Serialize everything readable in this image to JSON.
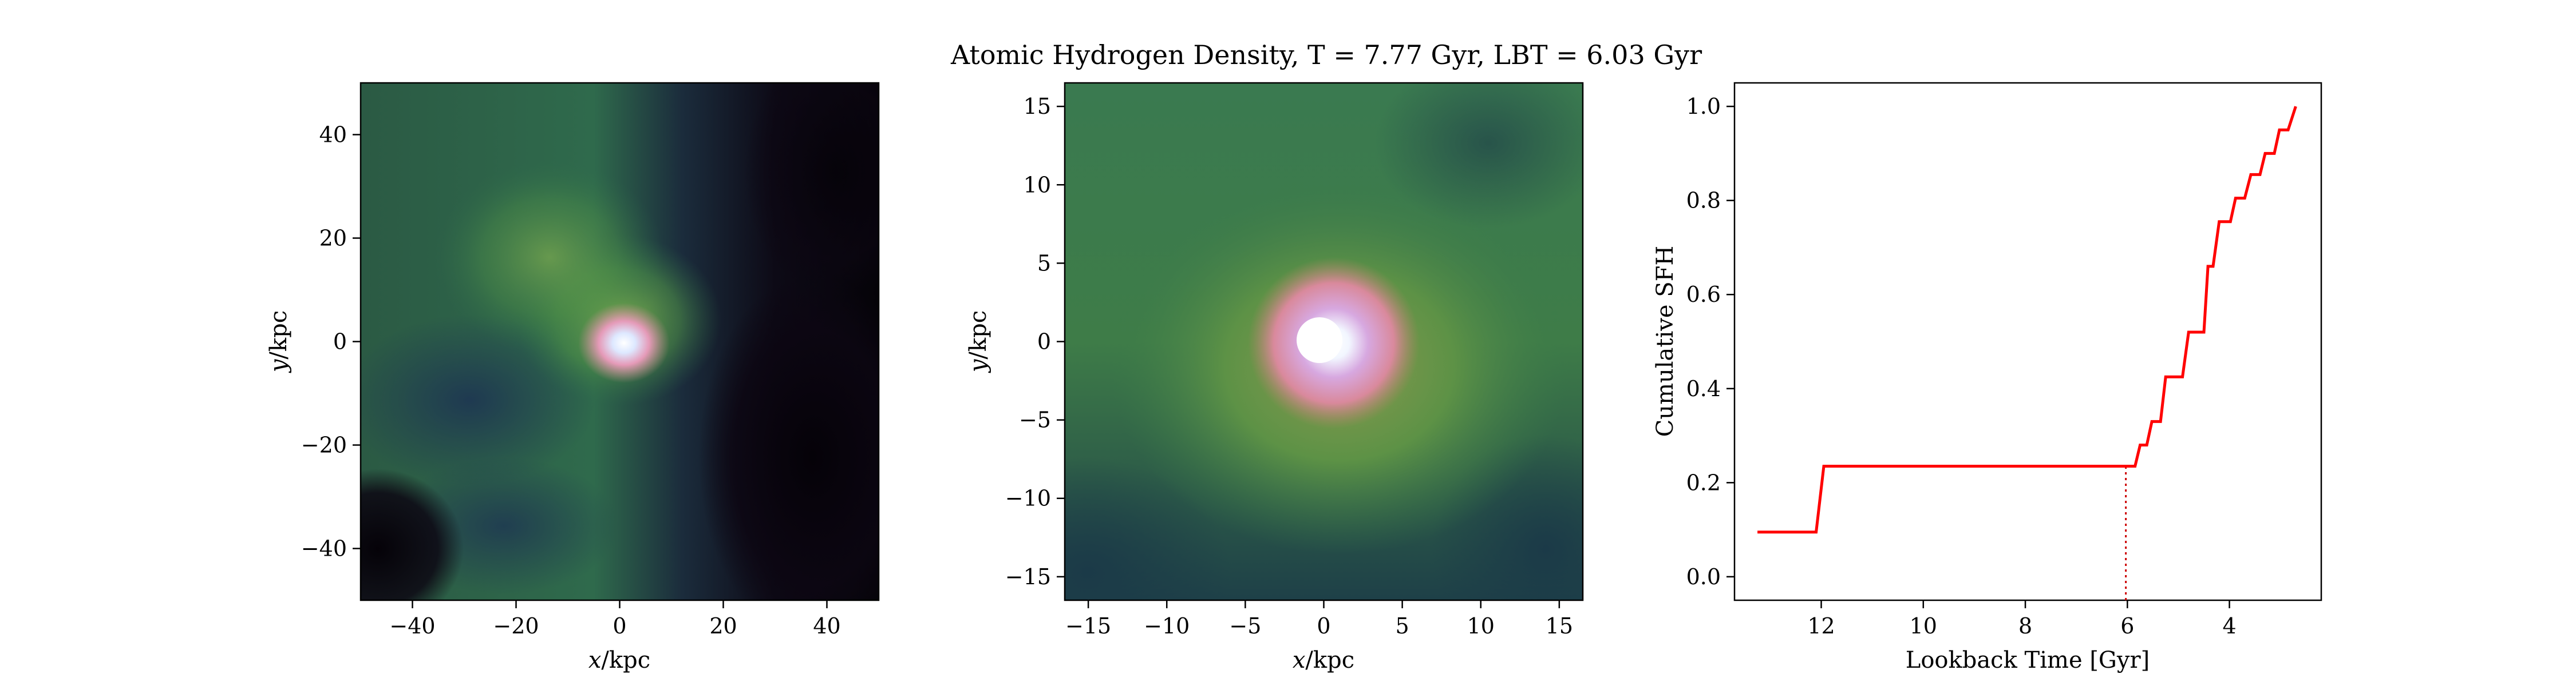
{
  "figure_title": "Atomic Hydrogen Density, T = 7.77 Gyr, LBT = 6.03 Gyr",
  "chart_data": [
    {
      "type": "heatmap",
      "xlabel_var": "x",
      "xlabel_unit": "/kpc",
      "ylabel_var": "y",
      "ylabel_unit": "/kpc",
      "xlim": [
        -50,
        50
      ],
      "ylim": [
        -50,
        50
      ],
      "xticks": [
        -40,
        -20,
        0,
        20,
        40
      ],
      "yticks": [
        -40,
        -20,
        0,
        20,
        40
      ],
      "xtick_labels": [
        "−40",
        "−20",
        "0",
        "20",
        "40"
      ],
      "ytick_labels": [
        "−40",
        "−20",
        "0",
        "20",
        "40"
      ],
      "core": [
        0,
        0
      ],
      "colors": {
        "low": "#0c0612",
        "mid": "#2f6e4a",
        "high": "#d98aa8",
        "peak": "#ffffff"
      }
    },
    {
      "type": "heatmap",
      "xlabel_var": "x",
      "xlabel_unit": "/kpc",
      "ylabel_var": "y",
      "ylabel_unit": "/kpc",
      "xlim": [
        -16.5,
        16.5
      ],
      "ylim": [
        -16.5,
        16.5
      ],
      "xticks": [
        -15,
        -10,
        -5,
        0,
        5,
        10,
        15
      ],
      "yticks": [
        -15,
        -10,
        -5,
        0,
        5,
        10,
        15
      ],
      "xtick_labels": [
        "−15",
        "−10",
        "−5",
        "0",
        "5",
        "10",
        "15"
      ],
      "ytick_labels": [
        "−15",
        "−10",
        "−5",
        "0",
        "5",
        "10",
        "15"
      ],
      "core": [
        0,
        0
      ],
      "colors": {
        "low": "#1b3a48",
        "mid": "#4f8a45",
        "high": "#e39bb8",
        "peak": "#ffffff"
      }
    },
    {
      "type": "line",
      "xlabel": "Lookback Time [Gyr]",
      "ylabel": "Cumulative SFH",
      "xlim": [
        13.7,
        2.2
      ],
      "ylim": [
        -0.05,
        1.05
      ],
      "xticks": [
        12,
        10,
        8,
        6,
        4
      ],
      "xtick_labels": [
        "12",
        "10",
        "8",
        "6",
        "4"
      ],
      "yticks": [
        0.0,
        0.2,
        0.4,
        0.6,
        0.8,
        1.0
      ],
      "ytick_labels": [
        "0.0",
        "0.2",
        "0.4",
        "0.6",
        "0.8",
        "1.0"
      ],
      "marker_lbt": 6.03,
      "line_color": "#ff0000",
      "x": [
        13.25,
        12.1,
        11.95,
        5.85,
        5.75,
        5.62,
        5.52,
        5.35,
        5.25,
        4.92,
        4.8,
        4.5,
        4.42,
        4.32,
        4.2,
        3.98,
        3.88,
        3.7,
        3.58,
        3.4,
        3.3,
        3.12,
        3.02,
        2.85,
        2.7
      ],
      "y": [
        0.095,
        0.095,
        0.235,
        0.235,
        0.28,
        0.28,
        0.33,
        0.33,
        0.425,
        0.425,
        0.52,
        0.52,
        0.66,
        0.66,
        0.755,
        0.755,
        0.805,
        0.805,
        0.855,
        0.855,
        0.9,
        0.9,
        0.95,
        0.95,
        1.0
      ]
    }
  ]
}
